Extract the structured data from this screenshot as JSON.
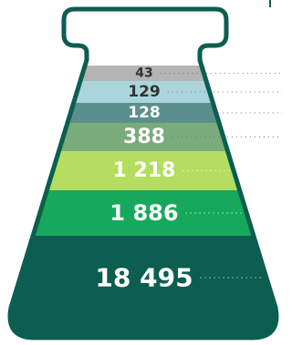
{
  "layers": [
    {
      "label": "43",
      "color": "#b4b4b4",
      "text_color": "#333333"
    },
    {
      "label": "129",
      "color": "#abd5dd",
      "text_color": "#333333"
    },
    {
      "label": "128",
      "color": "#5b8f8b",
      "text_color": "#ffffff"
    },
    {
      "label": "388",
      "color": "#7aab7c",
      "text_color": "#ffffff"
    },
    {
      "label": "1 218",
      "color": "#b3de5f",
      "text_color": "#ffffff"
    },
    {
      "label": "1 886",
      "color": "#17a95b",
      "text_color": "#ffffff"
    },
    {
      "label": "18 495",
      "color": "#0b5e50",
      "text_color": "#ffffff"
    }
  ]
}
